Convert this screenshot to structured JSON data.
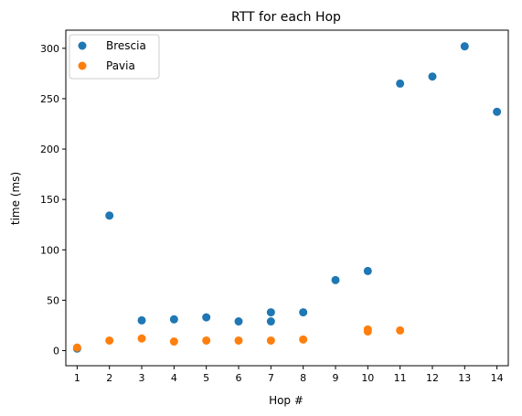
{
  "chart_data": {
    "type": "scatter",
    "title": "RTT for each Hop",
    "xlabel": "Hop #",
    "ylabel": "time (ms)",
    "xlim": [
      0.65,
      14.35
    ],
    "ylim": [
      -15,
      318
    ],
    "xticks": [
      1,
      2,
      3,
      4,
      5,
      6,
      7,
      8,
      9,
      10,
      11,
      12,
      13,
      14
    ],
    "yticks": [
      0,
      50,
      100,
      150,
      200,
      250,
      300
    ],
    "grid": false,
    "legend_position": "top-left",
    "series": [
      {
        "name": "Brescia",
        "color": "#1f77b4",
        "points": [
          {
            "x": 1,
            "y": 2
          },
          {
            "x": 2,
            "y": 134
          },
          {
            "x": 3,
            "y": 30
          },
          {
            "x": 4,
            "y": 31
          },
          {
            "x": 5,
            "y": 33
          },
          {
            "x": 6,
            "y": 29
          },
          {
            "x": 7,
            "y": 38
          },
          {
            "x": 7,
            "y": 29
          },
          {
            "x": 8,
            "y": 38
          },
          {
            "x": 9,
            "y": 70
          },
          {
            "x": 10,
            "y": 79
          },
          {
            "x": 11,
            "y": 265
          },
          {
            "x": 12,
            "y": 272
          },
          {
            "x": 13,
            "y": 302
          },
          {
            "x": 14,
            "y": 237
          }
        ]
      },
      {
        "name": "Pavia",
        "color": "#ff7f0e",
        "points": [
          {
            "x": 1,
            "y": 3
          },
          {
            "x": 2,
            "y": 10
          },
          {
            "x": 3,
            "y": 12
          },
          {
            "x": 4,
            "y": 9
          },
          {
            "x": 5,
            "y": 10
          },
          {
            "x": 6,
            "y": 10
          },
          {
            "x": 7,
            "y": 10
          },
          {
            "x": 8,
            "y": 11
          },
          {
            "x": 10,
            "y": 21
          },
          {
            "x": 10,
            "y": 19
          },
          {
            "x": 11,
            "y": 20
          }
        ]
      }
    ]
  }
}
